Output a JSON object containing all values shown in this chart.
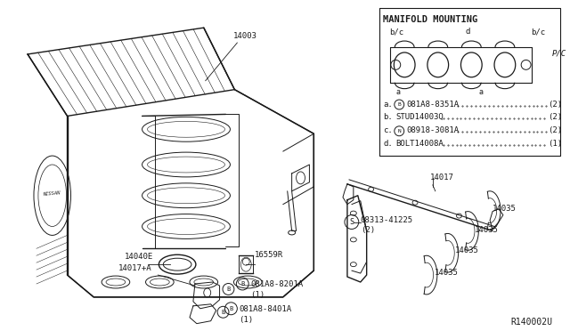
{
  "bg_color": "#ffffff",
  "line_color": "#1a1a1a",
  "fig_width": 6.4,
  "fig_height": 3.72,
  "dpi": 100,
  "watermark": "R140002U",
  "box_title": "MANIFOLD MOUNTING",
  "parts_list": [
    {
      "label": "a.",
      "circle": "B",
      "part": "081A8-8351A",
      "qty": "(2)"
    },
    {
      "label": "b.",
      "circle": "",
      "part": "STUD14003Q",
      "qty": "(2)"
    },
    {
      "label": "c.",
      "circle": "N",
      "part": "08918-3081A",
      "qty": "(2)"
    },
    {
      "label": "d.",
      "circle": "",
      "part": "BOLT14008A",
      "qty": "(1)"
    }
  ]
}
